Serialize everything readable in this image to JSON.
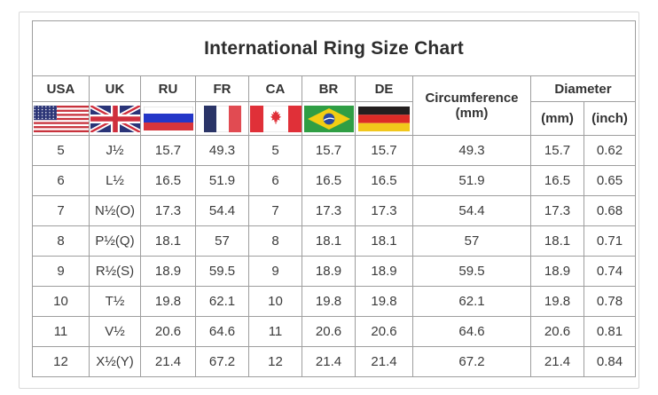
{
  "title": "International Ring Size Chart",
  "columns": [
    {
      "label": "USA",
      "flag": "us-flag"
    },
    {
      "label": "UK",
      "flag": "uk-flag"
    },
    {
      "label": "RU",
      "flag": "ru-flag"
    },
    {
      "label": "FR",
      "flag": "fr-flag"
    },
    {
      "label": "CA",
      "flag": "ca-flag"
    },
    {
      "label": "BR",
      "flag": "br-flag"
    },
    {
      "label": "DE",
      "flag": "de-flag"
    }
  ],
  "circumference_header": {
    "line1": "Circumference",
    "line2": "(mm)"
  },
  "diameter_header": {
    "label": "Diameter",
    "sub_mm": "(mm)",
    "sub_inch": "(inch)"
  },
  "row_keys": [
    "usa",
    "uk",
    "ru",
    "fr",
    "ca",
    "br",
    "de",
    "circumference",
    "diameter_mm",
    "diameter_inch"
  ],
  "rows": [
    {
      "usa": "5",
      "uk": "J½",
      "ru": "15.7",
      "fr": "49.3",
      "ca": "5",
      "br": "15.7",
      "de": "15.7",
      "circumference": "49.3",
      "diameter_mm": "15.7",
      "diameter_inch": "0.62"
    },
    {
      "usa": "6",
      "uk": "L½",
      "ru": "16.5",
      "fr": "51.9",
      "ca": "6",
      "br": "16.5",
      "de": "16.5",
      "circumference": "51.9",
      "diameter_mm": "16.5",
      "diameter_inch": "0.65"
    },
    {
      "usa": "7",
      "uk": "N½(O)",
      "ru": "17.3",
      "fr": "54.4",
      "ca": "7",
      "br": "17.3",
      "de": "17.3",
      "circumference": "54.4",
      "diameter_mm": "17.3",
      "diameter_inch": "0.68"
    },
    {
      "usa": "8",
      "uk": "P½(Q)",
      "ru": "18.1",
      "fr": "57",
      "ca": "8",
      "br": "18.1",
      "de": "18.1",
      "circumference": "57",
      "diameter_mm": "18.1",
      "diameter_inch": "0.71"
    },
    {
      "usa": "9",
      "uk": "R½(S)",
      "ru": "18.9",
      "fr": "59.5",
      "ca": "9",
      "br": "18.9",
      "de": "18.9",
      "circumference": "59.5",
      "diameter_mm": "18.9",
      "diameter_inch": "0.74"
    },
    {
      "usa": "10",
      "uk": "T½",
      "ru": "19.8",
      "fr": "62.1",
      "ca": "10",
      "br": "19.8",
      "de": "19.8",
      "circumference": "62.1",
      "diameter_mm": "19.8",
      "diameter_inch": "0.78"
    },
    {
      "usa": "11",
      "uk": "V½",
      "ru": "20.6",
      "fr": "64.6",
      "ca": "11",
      "br": "20.6",
      "de": "20.6",
      "circumference": "64.6",
      "diameter_mm": "20.6",
      "diameter_inch": "0.81"
    },
    {
      "usa": "12",
      "uk": "X½(Y)",
      "ru": "21.4",
      "fr": "67.2",
      "ca": "12",
      "br": "21.4",
      "de": "21.4",
      "circumference": "67.2",
      "diameter_mm": "21.4",
      "diameter_inch": "0.84"
    }
  ],
  "colors": {
    "table_border": "#9e9e9e",
    "outer_frame_border": "#d9d9d9",
    "text": "#3b3b3b",
    "title_text": "#2d2d2d",
    "background": "#ffffff",
    "flags": {
      "us": {
        "red": "#c8323c",
        "blue": "#2c3577",
        "white": "#ffffff"
      },
      "uk": {
        "blue": "#2a3478",
        "red": "#cf2e3d",
        "white": "#ffffff"
      },
      "ru": {
        "white": "#ffffff",
        "blue": "#2437c8",
        "red": "#d8353b"
      },
      "fr": {
        "blue": "#2a3467",
        "white": "#ffffff",
        "red": "#e14b52"
      },
      "ca": {
        "red": "#e03038",
        "white": "#ffffff"
      },
      "br": {
        "green": "#2f9e44",
        "yellow": "#f3cd13",
        "blue": "#2b49a0",
        "white": "#ffffff"
      },
      "de": {
        "black": "#241f1f",
        "red": "#dd2b26",
        "gold": "#f2c71b"
      }
    }
  }
}
